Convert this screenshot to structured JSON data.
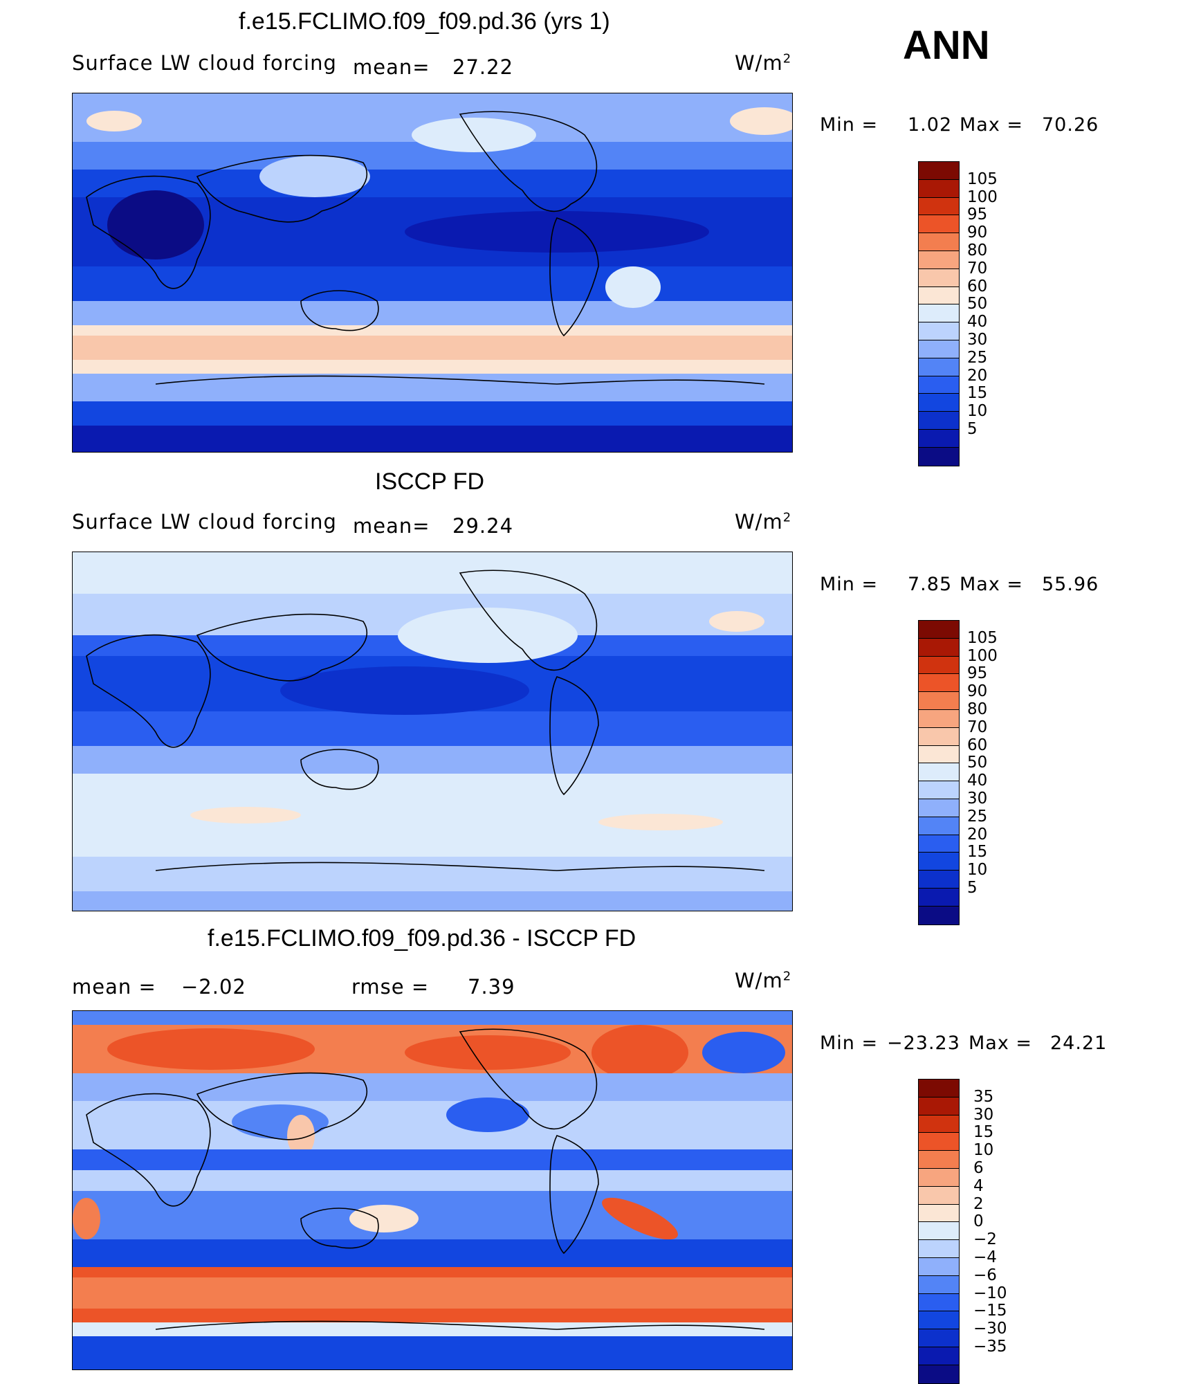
{
  "season": "ANN",
  "panels": [
    {
      "title": "f.e15.FCLIMO.f09_f09.pd.36 (yrs 1)",
      "variable": "Surface LW cloud forcing",
      "mean_label": "mean=",
      "mean_value": "27.22",
      "units_label": "W/m",
      "units_sup": "2",
      "min_label": "Min  =",
      "min_value": "1.02",
      "max_label": "Max  =",
      "max_value": "70.26",
      "palette": [
        "#0b0c85",
        "#0a1ab0",
        "#0c31cc",
        "#1246e0",
        "#2a5ef0",
        "#5384f6",
        "#8fb0fb",
        "#bcd3fd",
        "#ddecfb",
        "#fbe6d5",
        "#f9c7ab",
        "#f7a57f",
        "#f37e4f",
        "#ec5428",
        "#d0330f",
        "#a91805",
        "#7c0a02"
      ],
      "levels": [
        "105",
        "100",
        "95",
        "90",
        "80",
        "70",
        "60",
        "50",
        "40",
        "30",
        "25",
        "20",
        "15",
        "10",
        "5"
      ]
    },
    {
      "title": "ISCCP FD",
      "variable": "Surface LW cloud forcing",
      "mean_label": "mean=",
      "mean_value": "29.24",
      "units_label": "W/m",
      "units_sup": "2",
      "min_label": "Min  =",
      "min_value": "7.85",
      "max_label": "Max  =",
      "max_value": "55.96",
      "palette": [
        "#0b0c85",
        "#0a1ab0",
        "#0c31cc",
        "#1246e0",
        "#2a5ef0",
        "#5384f6",
        "#8fb0fb",
        "#bcd3fd",
        "#ddecfb",
        "#fbe6d5",
        "#f9c7ab",
        "#f7a57f",
        "#f37e4f",
        "#ec5428",
        "#d0330f",
        "#a91805",
        "#7c0a02"
      ],
      "levels": [
        "105",
        "100",
        "95",
        "90",
        "80",
        "70",
        "60",
        "50",
        "40",
        "30",
        "25",
        "20",
        "15",
        "10",
        "5"
      ]
    },
    {
      "title": "f.e15.FCLIMO.f09_f09.pd.36 - ISCCP FD",
      "mean_label": "mean =",
      "mean_value": "−2.02",
      "rmse_label": "rmse =",
      "rmse_value": "7.39",
      "units_label": "W/m",
      "units_sup": "2",
      "min_label": "Min  =",
      "min_value": "−23.23",
      "max_label": "Max  =",
      "max_value": "24.21",
      "palette": [
        "#0b0c85",
        "#0a1ab0",
        "#0c31cc",
        "#1246e0",
        "#2a5ef0",
        "#5384f6",
        "#8fb0fb",
        "#bcd3fd",
        "#ddecfb",
        "#fbe6d5",
        "#f9c7ab",
        "#f7a57f",
        "#f37e4f",
        "#ec5428",
        "#d0330f",
        "#a91805",
        "#7c0a02"
      ],
      "levels": [
        "35",
        "30",
        "15",
        "10",
        "6",
        "4",
        "2",
        "0",
        "−2",
        "−4",
        "−6",
        "−10",
        "−15",
        "−30",
        "−35"
      ]
    }
  ]
}
